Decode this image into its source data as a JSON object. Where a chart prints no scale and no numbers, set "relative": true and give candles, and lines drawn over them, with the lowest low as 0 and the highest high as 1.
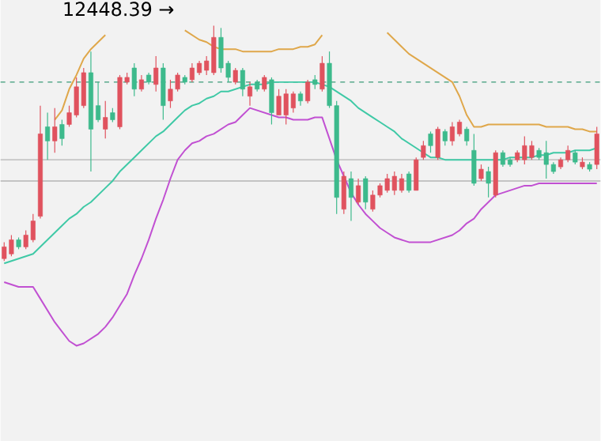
{
  "chart_data": {
    "type": "candlestick",
    "relative": true,
    "categories": [
      null,
      null,
      null,
      null,
      null,
      null,
      null,
      null,
      null,
      null,
      null,
      null,
      null,
      null,
      null,
      null,
      null,
      null,
      null,
      null,
      null,
      null,
      null,
      null,
      null,
      null,
      null,
      null,
      null,
      null,
      null,
      null,
      null,
      null,
      null,
      null,
      null,
      null,
      null,
      null,
      null,
      null,
      null,
      null,
      null,
      null,
      null,
      null,
      null,
      null,
      null,
      null,
      null,
      null,
      null,
      null,
      null,
      null,
      null,
      null,
      null,
      null,
      null,
      null,
      null,
      null,
      null,
      null,
      null,
      null,
      null,
      null,
      null,
      null,
      null,
      null,
      null,
      null,
      null,
      null,
      null,
      null,
      null
    ],
    "ohlc": [
      [
        0.01,
        0.08,
        0,
        0.06
      ],
      [
        0.03,
        0.11,
        0.02,
        0.09
      ],
      [
        0.09,
        0.1,
        0.05,
        0.06
      ],
      [
        0.06,
        0.13,
        0.05,
        0.11
      ],
      [
        0.09,
        0.2,
        0.08,
        0.17
      ],
      [
        0.19,
        0.66,
        0.18,
        0.54
      ],
      [
        0.57,
        0.63,
        0.43,
        0.51
      ],
      [
        0.51,
        0.65,
        0.46,
        0.57
      ],
      [
        0.58,
        0.6,
        0.49,
        0.52
      ],
      [
        0.58,
        0.66,
        0.57,
        0.63
      ],
      [
        0.62,
        0.78,
        0.61,
        0.74
      ],
      [
        0.66,
        0.82,
        0.65,
        0.8
      ],
      [
        0.8,
        0.89,
        0.38,
        0.56
      ],
      [
        0.66,
        0.76,
        0.59,
        0.6
      ],
      [
        0.56,
        0.68,
        0.52,
        0.61
      ],
      [
        0.63,
        0.65,
        0.59,
        0.6
      ],
      [
        0.57,
        0.79,
        0.56,
        0.78
      ],
      [
        0.76,
        0.8,
        0.75,
        0.78
      ],
      [
        0.82,
        0.84,
        0.7,
        0.73
      ],
      [
        0.73,
        0.79,
        0.72,
        0.77
      ],
      [
        0.79,
        0.8,
        0.75,
        0.76
      ],
      [
        0.75,
        0.87,
        0.72,
        0.82
      ],
      [
        0.82,
        0.84,
        0.6,
        0.66
      ],
      [
        0.68,
        0.77,
        0.65,
        0.73
      ],
      [
        0.73,
        0.8,
        0.72,
        0.79
      ],
      [
        0.78,
        0.79,
        0.75,
        0.76
      ],
      [
        0.77,
        0.84,
        0.76,
        0.82
      ],
      [
        0.8,
        0.85,
        0.79,
        0.84
      ],
      [
        0.81,
        0.87,
        0.79,
        0.85
      ],
      [
        0.8,
        1.0,
        0.79,
        0.95
      ],
      [
        0.95,
        0.99,
        0.8,
        0.82
      ],
      [
        0.84,
        0.85,
        0.76,
        0.78
      ],
      [
        0.76,
        0.82,
        0.75,
        0.81
      ],
      [
        0.81,
        0.82,
        0.7,
        0.73
      ],
      [
        0.7,
        0.76,
        0.66,
        0.74
      ],
      [
        0.76,
        0.77,
        0.72,
        0.73
      ],
      [
        0.73,
        0.79,
        0.72,
        0.78
      ],
      [
        0.77,
        0.78,
        0.58,
        0.63
      ],
      [
        0.62,
        0.73,
        0.62,
        0.7
      ],
      [
        0.62,
        0.73,
        0.58,
        0.71
      ],
      [
        0.65,
        0.72,
        0.63,
        0.71
      ],
      [
        0.71,
        0.72,
        0.66,
        0.68
      ],
      [
        0.68,
        0.77,
        0.67,
        0.76
      ],
      [
        0.77,
        0.79,
        0.73,
        0.75
      ],
      [
        0.73,
        0.87,
        0.72,
        0.84
      ],
      [
        0.84,
        0.89,
        0.65,
        0.66
      ],
      [
        0.66,
        0.68,
        0.2,
        0.27
      ],
      [
        0.22,
        0.38,
        0.2,
        0.36
      ],
      [
        0.35,
        0.38,
        0.17,
        0.27
      ],
      [
        0.25,
        0.35,
        0.24,
        0.32
      ],
      [
        0.35,
        0.36,
        0.22,
        0.25
      ],
      [
        0.22,
        0.3,
        0.21,
        0.28
      ],
      [
        0.28,
        0.33,
        0.27,
        0.32
      ],
      [
        0.3,
        0.37,
        0.29,
        0.35
      ],
      [
        0.3,
        0.38,
        0.28,
        0.36
      ],
      [
        0.3,
        0.37,
        0.29,
        0.35
      ],
      [
        0.37,
        0.38,
        0.29,
        0.3
      ],
      [
        0.3,
        0.44,
        0.3,
        0.43
      ],
      [
        0.44,
        0.51,
        0.43,
        0.49
      ],
      [
        0.54,
        0.55,
        0.46,
        0.49
      ],
      [
        0.44,
        0.57,
        0.43,
        0.56
      ],
      [
        0.55,
        0.56,
        0.49,
        0.51
      ],
      [
        0.51,
        0.59,
        0.49,
        0.57
      ],
      [
        0.54,
        0.6,
        0.53,
        0.59
      ],
      [
        0.56,
        0.57,
        0.49,
        0.51
      ],
      [
        0.47,
        0.54,
        0.32,
        0.33
      ],
      [
        0.35,
        0.41,
        0.34,
        0.39
      ],
      [
        0.38,
        0.4,
        0.27,
        0.33
      ],
      [
        0.28,
        0.47,
        0.27,
        0.46
      ],
      [
        0.46,
        0.47,
        0.4,
        0.41
      ],
      [
        0.43,
        0.44,
        0.4,
        0.41
      ],
      [
        0.43,
        0.47,
        0.42,
        0.46
      ],
      [
        0.43,
        0.53,
        0.41,
        0.49
      ],
      [
        0.44,
        0.51,
        0.43,
        0.49
      ],
      [
        0.47,
        0.48,
        0.43,
        0.44
      ],
      [
        0.46,
        0.51,
        0.35,
        0.41
      ],
      [
        0.41,
        0.42,
        0.37,
        0.38
      ],
      [
        0.4,
        0.44,
        0.39,
        0.43
      ],
      [
        0.43,
        0.49,
        0.42,
        0.47
      ],
      [
        0.46,
        0.47,
        0.41,
        0.42
      ],
      [
        0.4,
        0.44,
        0.39,
        0.42
      ],
      [
        0.41,
        0.42,
        0.38,
        0.39
      ],
      [
        0.41,
        0.57,
        0.39,
        0.54
      ]
    ],
    "colors": [
      "#e0525e",
      "#e0525e",
      "#3dba8c",
      "#e0525e",
      "#e0525e",
      "#e0525e",
      "#3dba8c",
      "#e0525e",
      "#3dba8c",
      "#e0525e",
      "#e0525e",
      "#e0525e",
      "#3dba8c",
      "#3dba8c",
      "#e0525e",
      "#3dba8c",
      "#e0525e",
      "#e0525e",
      "#3dba8c",
      "#e0525e",
      "#3dba8c",
      "#e0525e",
      "#3dba8c",
      "#e0525e",
      "#e0525e",
      "#3dba8c",
      "#e0525e",
      "#e0525e",
      "#e0525e",
      "#e0525e",
      "#3dba8c",
      "#3dba8c",
      "#e0525e",
      "#3dba8c",
      "#e0525e",
      "#3dba8c",
      "#e0525e",
      "#3dba8c",
      "#e0525e",
      "#e0525e",
      "#e0525e",
      "#3dba8c",
      "#e0525e",
      "#3dba8c",
      "#e0525e",
      "#3dba8c",
      "#3dba8c",
      "#e0525e",
      "#3dba8c",
      "#e0525e",
      "#3dba8c",
      "#e0525e",
      "#e0525e",
      "#e0525e",
      "#e0525e",
      "#e0525e",
      "#3dba8c",
      "#e0525e",
      "#e0525e",
      "#3dba8c",
      "#e0525e",
      "#3dba8c",
      "#e0525e",
      "#e0525e",
      "#3dba8c",
      "#3dba8c",
      "#e0525e",
      "#3dba8c",
      "#e0525e",
      "#3dba8c",
      "#3dba8c",
      "#e0525e",
      "#e0525e",
      "#e0525e",
      "#3dba8c",
      "#3dba8c",
      "#3dba8c",
      "#e0525e",
      "#e0525e",
      "#3dba8c",
      "#e0525e",
      "#3dba8c",
      "#e0525e"
    ],
    "series": [
      {
        "type": "line",
        "color": "#dfa74a",
        "values": [
          null,
          null,
          null,
          null,
          null,
          null,
          null,
          0.6,
          0.64,
          0.73,
          0.79,
          0.86,
          0.9,
          0.93,
          0.96,
          null,
          null,
          null,
          null,
          null,
          null,
          null,
          null,
          null,
          null,
          0.98,
          0.96,
          0.94,
          0.93,
          0.91,
          0.9,
          0.9,
          0.9,
          0.89,
          0.89,
          0.89,
          0.89,
          0.89,
          0.9,
          0.9,
          0.9,
          0.91,
          0.91,
          0.92,
          0.96,
          null,
          null,
          null,
          null,
          null,
          null,
          null,
          null,
          0.97,
          0.94,
          0.91,
          0.88,
          0.86,
          0.84,
          0.82,
          0.8,
          0.78,
          0.76,
          0.7,
          0.62,
          0.57,
          0.57,
          0.58,
          0.58,
          0.58,
          0.58,
          0.58,
          0.58,
          0.58,
          0.58,
          0.57,
          0.57,
          0.57,
          0.57,
          0.56,
          0.56,
          0.55,
          0.55
        ]
      },
      {
        "type": "line",
        "color": "#3fc9a6",
        "values": [
          -0.01,
          0,
          0.01,
          0.02,
          0.03,
          0.06,
          0.09,
          0.12,
          0.15,
          0.18,
          0.2,
          0.23,
          0.25,
          0.28,
          0.31,
          0.34,
          0.38,
          0.41,
          0.44,
          0.47,
          0.5,
          0.53,
          0.55,
          0.58,
          0.61,
          0.64,
          0.66,
          0.67,
          0.69,
          0.7,
          0.72,
          0.72,
          0.73,
          0.74,
          0.75,
          0.75,
          0.75,
          0.76,
          0.76,
          0.76,
          0.76,
          0.76,
          0.76,
          0.76,
          0.75,
          0.74,
          0.72,
          0.7,
          0.68,
          0.65,
          0.63,
          0.61,
          0.59,
          0.57,
          0.55,
          0.52,
          0.5,
          0.48,
          0.46,
          0.44,
          0.44,
          0.43,
          0.43,
          0.43,
          0.43,
          0.43,
          0.43,
          0.43,
          0.43,
          0.43,
          0.44,
          0.44,
          0.44,
          0.44,
          0.45,
          0.45,
          0.46,
          0.46,
          0.46,
          0.47,
          0.47,
          0.47,
          0.48
        ]
      },
      {
        "type": "line",
        "color": "#c150d2",
        "values": [
          -0.09,
          -0.1,
          -0.11,
          -0.11,
          -0.11,
          -0.16,
          -0.21,
          -0.26,
          -0.3,
          -0.34,
          -0.36,
          -0.35,
          -0.33,
          -0.31,
          -0.28,
          -0.24,
          -0.19,
          -0.14,
          -0.06,
          0.01,
          0.09,
          0.18,
          0.26,
          0.35,
          0.43,
          0.47,
          0.5,
          0.51,
          0.53,
          0.54,
          0.56,
          0.58,
          0.59,
          0.62,
          0.65,
          0.64,
          0.63,
          0.62,
          0.61,
          0.61,
          0.6,
          0.6,
          0.6,
          0.61,
          0.61,
          0.52,
          0.43,
          0.36,
          0.29,
          0.24,
          0.2,
          0.17,
          0.14,
          0.12,
          0.1,
          0.09,
          0.08,
          0.08,
          0.08,
          0.08,
          0.09,
          0.1,
          0.11,
          0.13,
          0.16,
          0.18,
          0.22,
          0.25,
          0.28,
          0.29,
          0.3,
          0.31,
          0.32,
          0.32,
          0.33,
          0.33,
          0.33,
          0.33,
          0.33,
          0.33,
          0.33,
          0.33,
          0.33
        ]
      }
    ],
    "ref_lines": [
      {
        "axis": "y",
        "value": 0.76,
        "color": "#3a9a78",
        "line_style": "dashed"
      },
      {
        "axis": "y",
        "value": 0.43,
        "color": "#b4b4b4",
        "line_style": "solid"
      },
      {
        "axis": "y",
        "value": 0.34,
        "color": "#b4b4b4",
        "line_style": "solid"
      }
    ],
    "annotations": [
      "12448.39 →"
    ]
  }
}
